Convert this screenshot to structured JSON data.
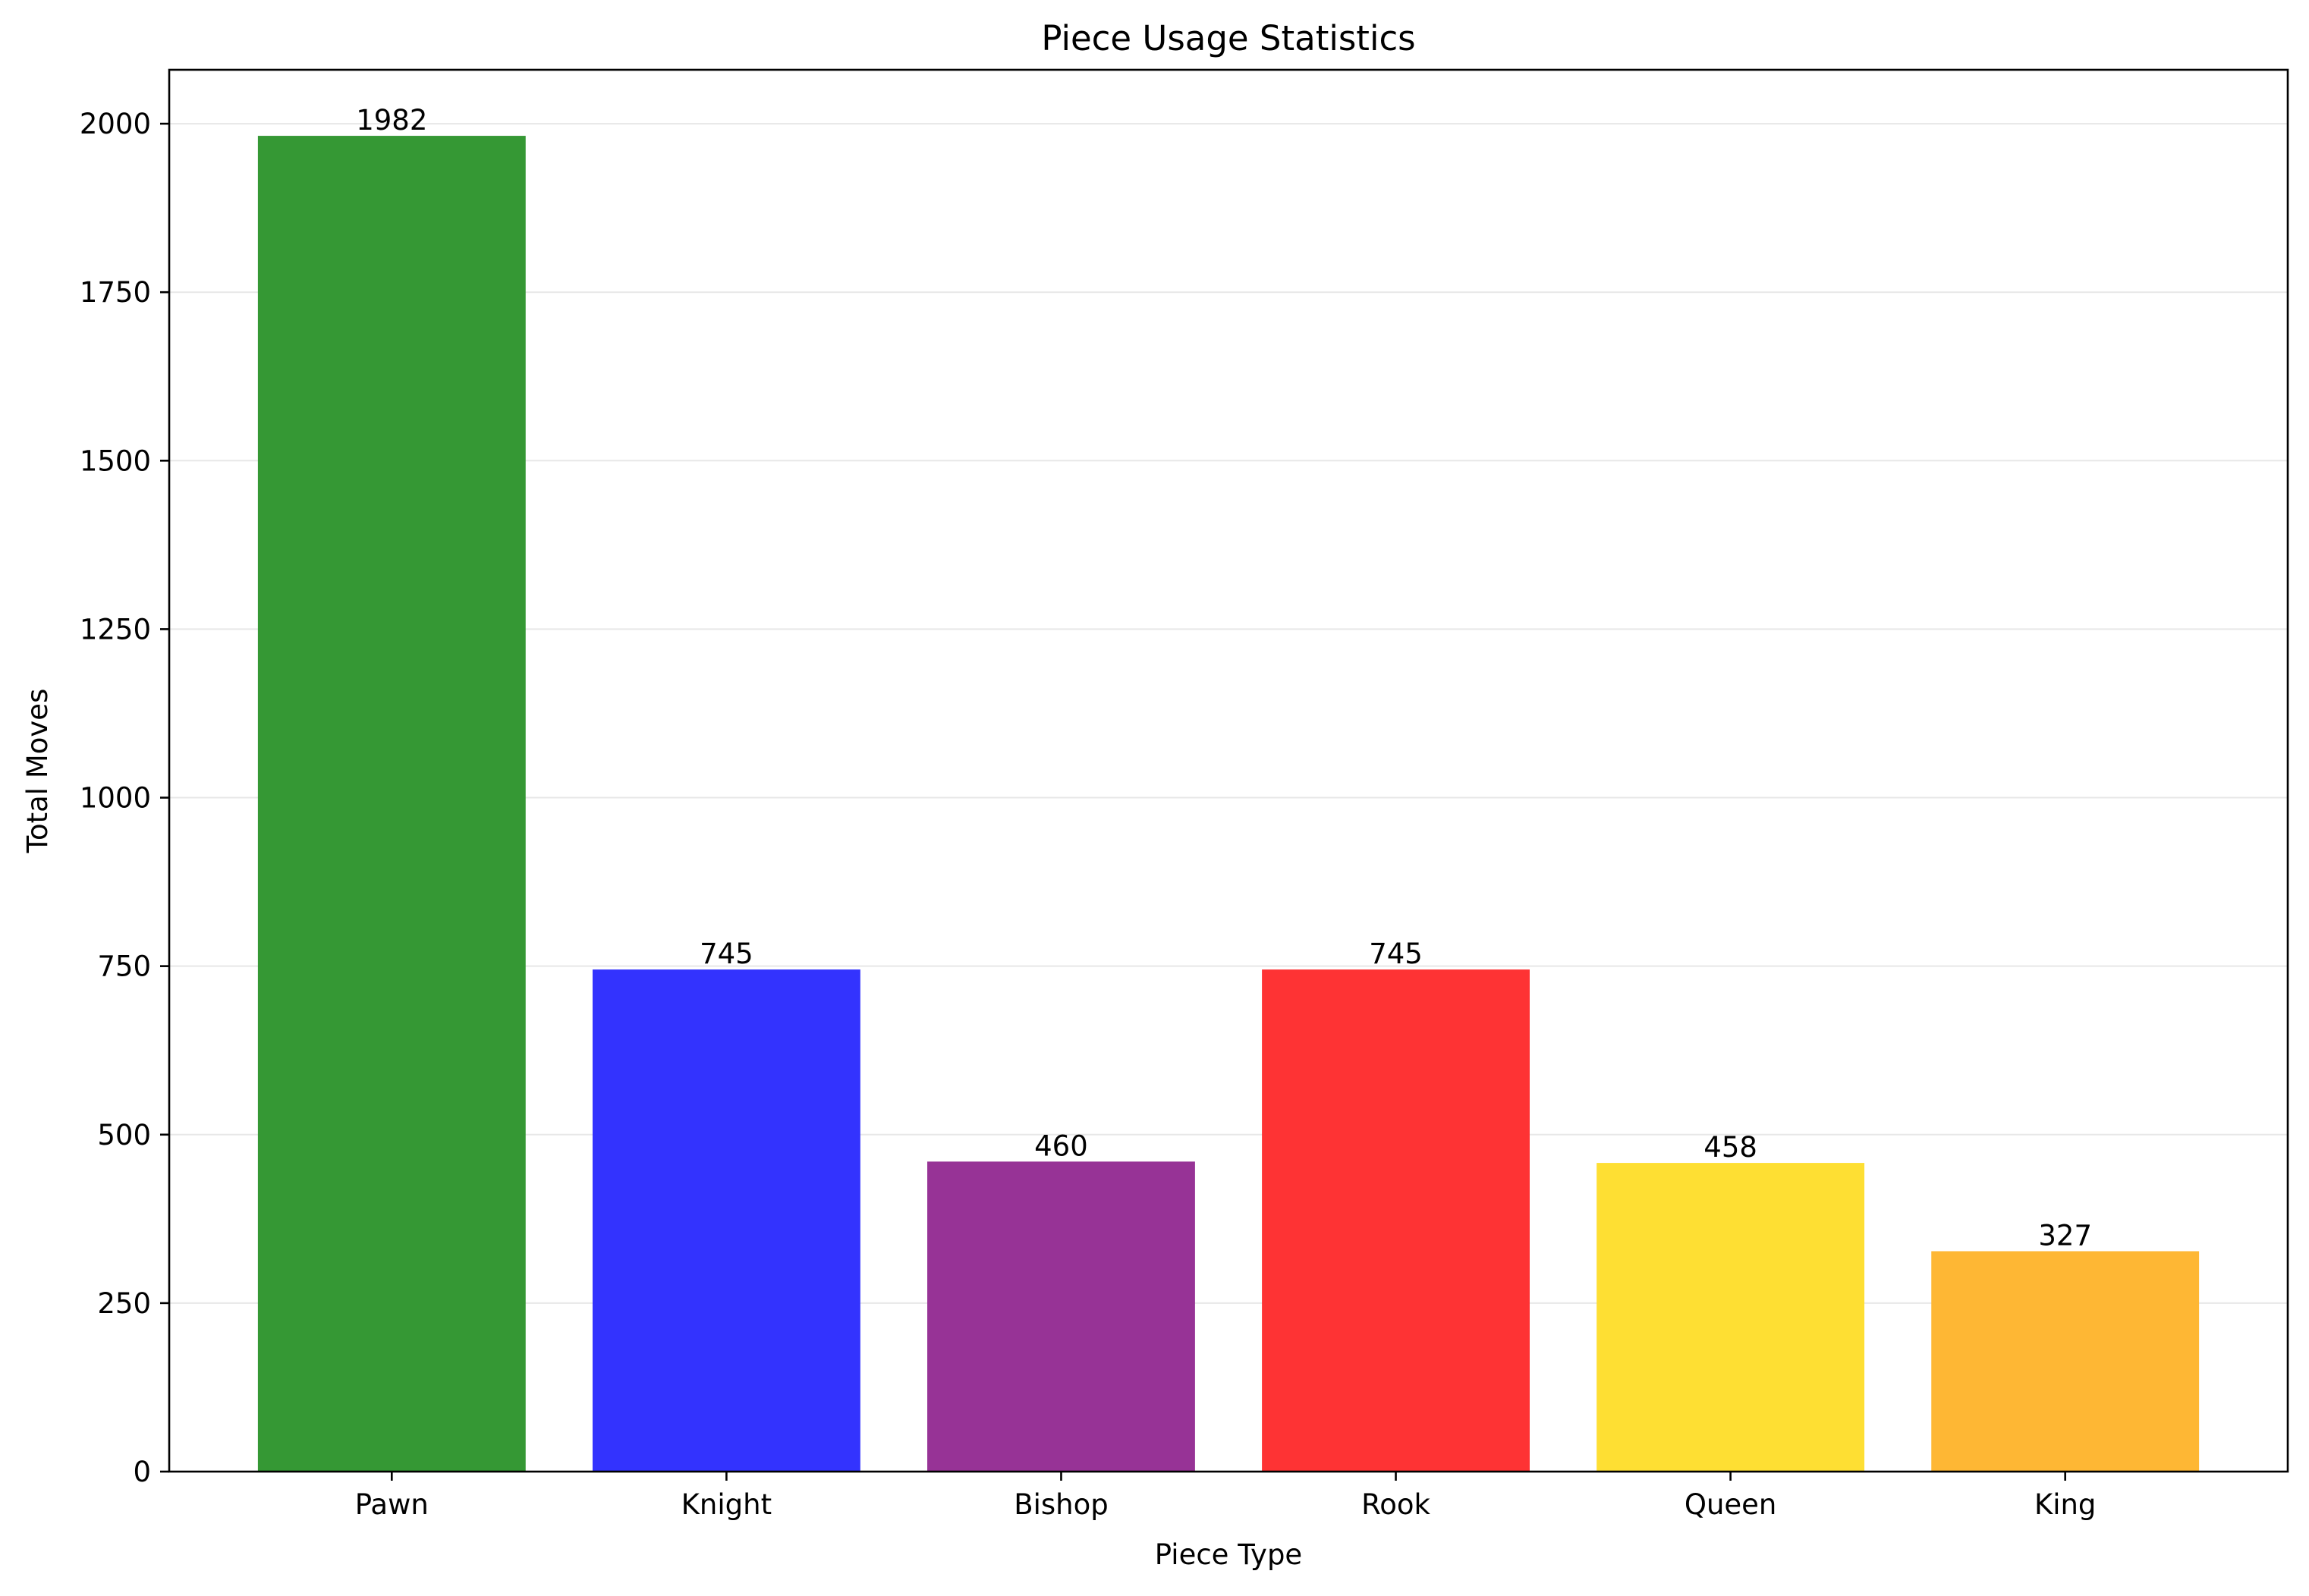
{
  "chart_data": {
    "type": "bar",
    "title": "Piece Usage Statistics",
    "xlabel": "Piece Type",
    "ylabel": "Total Moves",
    "categories": [
      "Pawn",
      "Knight",
      "Bishop",
      "Rook",
      "Queen",
      "King"
    ],
    "values": [
      1982,
      745,
      460,
      745,
      458,
      327
    ],
    "value_labels": [
      "1982",
      "745",
      "460",
      "745",
      "458",
      "327"
    ],
    "colors": [
      "#359834",
      "#3333fe",
      "#973396",
      "#fe3334",
      "#fedf33",
      "#feb734"
    ],
    "ylim": [
      0,
      2080
    ],
    "yticks": [
      0,
      250,
      500,
      750,
      1000,
      1250,
      1500,
      1750,
      2000
    ],
    "ytick_labels": [
      "0",
      "250",
      "500",
      "750",
      "1000",
      "1250",
      "1500",
      "1750",
      "2000"
    ],
    "grid": "y",
    "legend": "none"
  }
}
